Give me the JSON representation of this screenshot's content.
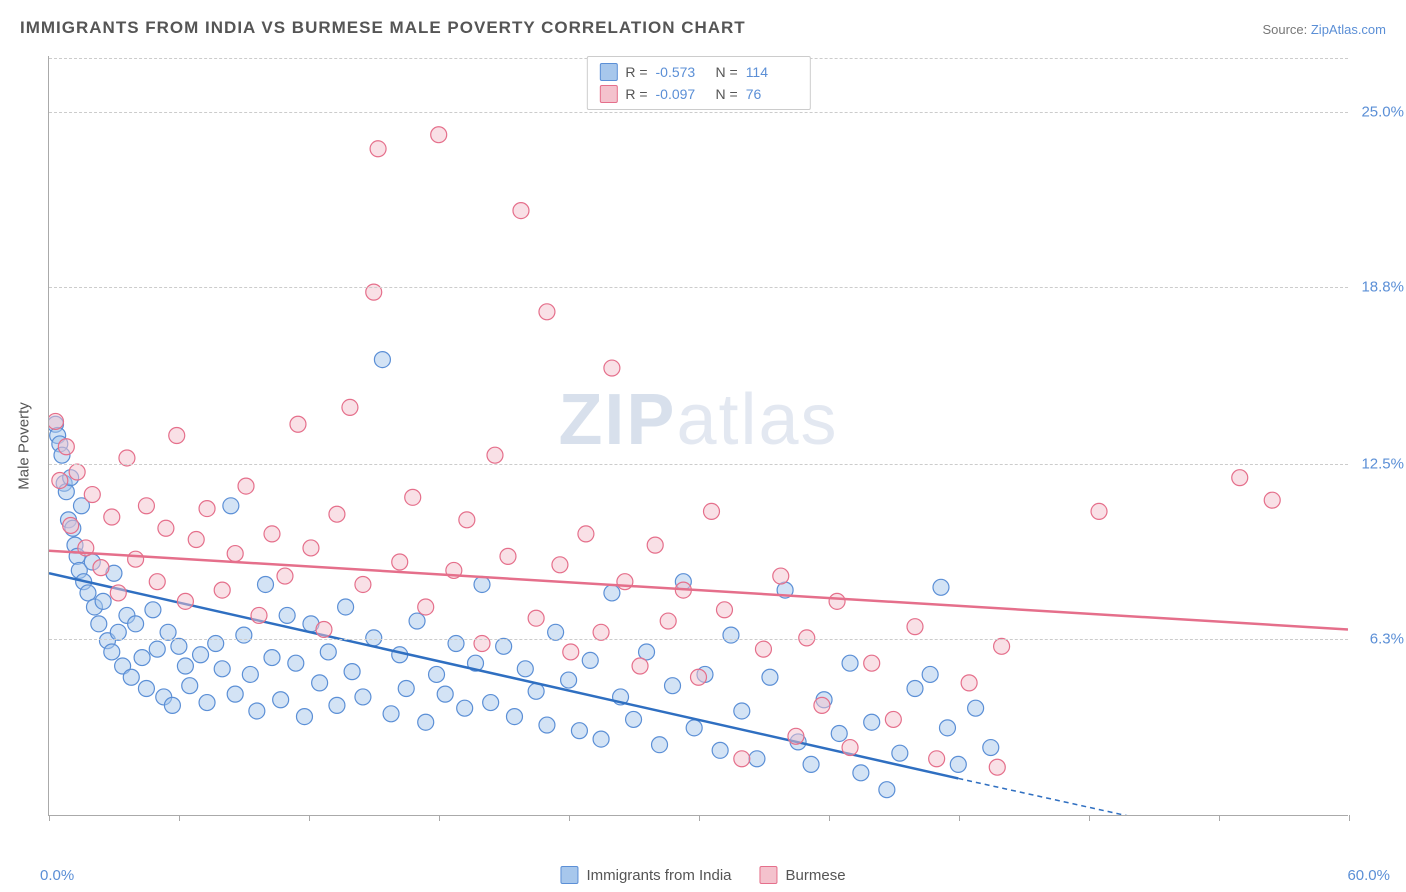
{
  "title": "IMMIGRANTS FROM INDIA VS BURMESE MALE POVERTY CORRELATION CHART",
  "source_prefix": "Source: ",
  "source_link": "ZipAtlas.com",
  "ylabel": "Male Poverty",
  "watermark_bold": "ZIP",
  "watermark_light": "atlas",
  "chart": {
    "type": "scatter",
    "xlim": [
      0,
      60
    ],
    "ylim": [
      0,
      27
    ],
    "x_tick_positions": [
      0,
      6,
      12,
      18,
      24,
      30,
      36,
      42,
      48,
      54,
      60
    ],
    "y_ticks": [
      {
        "value": 6.3,
        "label": "6.3%"
      },
      {
        "value": 12.5,
        "label": "12.5%"
      },
      {
        "value": 18.8,
        "label": "18.8%"
      },
      {
        "value": 25.0,
        "label": "25.0%"
      }
    ],
    "xlabel_min": "0.0%",
    "xlabel_max": "60.0%",
    "background_color": "#ffffff",
    "grid_color": "#cccccc",
    "point_radius": 8,
    "point_opacity": 0.5,
    "line_width": 2.5,
    "dash_pattern": "5,4",
    "series": [
      {
        "name": "Immigrants from India",
        "fill_color": "#a7c7ec",
        "stroke_color": "#5b8fd6",
        "line_color": "#2f6fc1",
        "R": "-0.573",
        "N": "114",
        "trend": {
          "x1": 0,
          "y1": 8.6,
          "x2": 42,
          "y2": 1.3,
          "dash_from_x": 42,
          "dash_to_x": 52,
          "dash_to_y": -0.4
        },
        "points": [
          [
            0.3,
            13.9
          ],
          [
            0.4,
            13.5
          ],
          [
            0.5,
            13.2
          ],
          [
            0.6,
            12.8
          ],
          [
            0.7,
            11.8
          ],
          [
            0.8,
            11.5
          ],
          [
            0.9,
            10.5
          ],
          [
            1.0,
            12.0
          ],
          [
            1.1,
            10.2
          ],
          [
            1.2,
            9.6
          ],
          [
            1.3,
            9.2
          ],
          [
            1.4,
            8.7
          ],
          [
            1.5,
            11.0
          ],
          [
            1.6,
            8.3
          ],
          [
            1.8,
            7.9
          ],
          [
            2.0,
            9.0
          ],
          [
            2.1,
            7.4
          ],
          [
            2.3,
            6.8
          ],
          [
            2.5,
            7.6
          ],
          [
            2.7,
            6.2
          ],
          [
            2.9,
            5.8
          ],
          [
            3.0,
            8.6
          ],
          [
            3.2,
            6.5
          ],
          [
            3.4,
            5.3
          ],
          [
            3.6,
            7.1
          ],
          [
            3.8,
            4.9
          ],
          [
            4.0,
            6.8
          ],
          [
            4.3,
            5.6
          ],
          [
            4.5,
            4.5
          ],
          [
            4.8,
            7.3
          ],
          [
            5.0,
            5.9
          ],
          [
            5.3,
            4.2
          ],
          [
            5.5,
            6.5
          ],
          [
            5.7,
            3.9
          ],
          [
            6.0,
            6.0
          ],
          [
            6.3,
            5.3
          ],
          [
            6.5,
            4.6
          ],
          [
            7.0,
            5.7
          ],
          [
            7.3,
            4.0
          ],
          [
            7.7,
            6.1
          ],
          [
            8.0,
            5.2
          ],
          [
            8.4,
            11.0
          ],
          [
            8.6,
            4.3
          ],
          [
            9.0,
            6.4
          ],
          [
            9.3,
            5.0
          ],
          [
            9.6,
            3.7
          ],
          [
            10.0,
            8.2
          ],
          [
            10.3,
            5.6
          ],
          [
            10.7,
            4.1
          ],
          [
            11.0,
            7.1
          ],
          [
            11.4,
            5.4
          ],
          [
            11.8,
            3.5
          ],
          [
            12.1,
            6.8
          ],
          [
            12.5,
            4.7
          ],
          [
            12.9,
            5.8
          ],
          [
            13.3,
            3.9
          ],
          [
            13.7,
            7.4
          ],
          [
            14.0,
            5.1
          ],
          [
            14.5,
            4.2
          ],
          [
            15.0,
            6.3
          ],
          [
            15.4,
            16.2
          ],
          [
            15.8,
            3.6
          ],
          [
            16.2,
            5.7
          ],
          [
            16.5,
            4.5
          ],
          [
            17.0,
            6.9
          ],
          [
            17.4,
            3.3
          ],
          [
            17.9,
            5.0
          ],
          [
            18.3,
            4.3
          ],
          [
            18.8,
            6.1
          ],
          [
            19.2,
            3.8
          ],
          [
            19.7,
            5.4
          ],
          [
            20.0,
            8.2
          ],
          [
            20.4,
            4.0
          ],
          [
            21.0,
            6.0
          ],
          [
            21.5,
            3.5
          ],
          [
            22.0,
            5.2
          ],
          [
            22.5,
            4.4
          ],
          [
            23.0,
            3.2
          ],
          [
            23.4,
            6.5
          ],
          [
            24.0,
            4.8
          ],
          [
            24.5,
            3.0
          ],
          [
            25.0,
            5.5
          ],
          [
            25.5,
            2.7
          ],
          [
            26.0,
            7.9
          ],
          [
            26.4,
            4.2
          ],
          [
            27.0,
            3.4
          ],
          [
            27.6,
            5.8
          ],
          [
            28.2,
            2.5
          ],
          [
            28.8,
            4.6
          ],
          [
            29.3,
            8.3
          ],
          [
            29.8,
            3.1
          ],
          [
            30.3,
            5.0
          ],
          [
            31.0,
            2.3
          ],
          [
            31.5,
            6.4
          ],
          [
            32.0,
            3.7
          ],
          [
            32.7,
            2.0
          ],
          [
            33.3,
            4.9
          ],
          [
            34.0,
            8.0
          ],
          [
            34.6,
            2.6
          ],
          [
            35.2,
            1.8
          ],
          [
            35.8,
            4.1
          ],
          [
            36.5,
            2.9
          ],
          [
            37.0,
            5.4
          ],
          [
            37.5,
            1.5
          ],
          [
            38.0,
            3.3
          ],
          [
            38.7,
            0.9
          ],
          [
            39.3,
            2.2
          ],
          [
            40.0,
            4.5
          ],
          [
            40.7,
            5.0
          ],
          [
            41.5,
            3.1
          ],
          [
            42.0,
            1.8
          ],
          [
            42.8,
            3.8
          ],
          [
            43.5,
            2.4
          ],
          [
            41.2,
            8.1
          ]
        ]
      },
      {
        "name": "Burmese",
        "fill_color": "#f4c2cd",
        "stroke_color": "#e56f8b",
        "line_color": "#e56f8b",
        "R": "-0.097",
        "N": "76",
        "trend": {
          "x1": 0,
          "y1": 9.4,
          "x2": 60,
          "y2": 6.6
        },
        "points": [
          [
            0.3,
            14.0
          ],
          [
            0.5,
            11.9
          ],
          [
            0.8,
            13.1
          ],
          [
            1.0,
            10.3
          ],
          [
            1.3,
            12.2
          ],
          [
            1.7,
            9.5
          ],
          [
            2.0,
            11.4
          ],
          [
            2.4,
            8.8
          ],
          [
            2.9,
            10.6
          ],
          [
            3.2,
            7.9
          ],
          [
            3.6,
            12.7
          ],
          [
            4.0,
            9.1
          ],
          [
            4.5,
            11.0
          ],
          [
            5.0,
            8.3
          ],
          [
            5.4,
            10.2
          ],
          [
            5.9,
            13.5
          ],
          [
            6.3,
            7.6
          ],
          [
            6.8,
            9.8
          ],
          [
            7.3,
            10.9
          ],
          [
            8.0,
            8.0
          ],
          [
            8.6,
            9.3
          ],
          [
            9.1,
            11.7
          ],
          [
            9.7,
            7.1
          ],
          [
            10.3,
            10.0
          ],
          [
            10.9,
            8.5
          ],
          [
            11.5,
            13.9
          ],
          [
            12.1,
            9.5
          ],
          [
            12.7,
            6.6
          ],
          [
            13.3,
            10.7
          ],
          [
            13.9,
            14.5
          ],
          [
            14.5,
            8.2
          ],
          [
            15.0,
            18.6
          ],
          [
            15.2,
            23.7
          ],
          [
            16.2,
            9.0
          ],
          [
            16.8,
            11.3
          ],
          [
            17.4,
            7.4
          ],
          [
            18.0,
            24.2
          ],
          [
            18.7,
            8.7
          ],
          [
            19.3,
            10.5
          ],
          [
            20.0,
            6.1
          ],
          [
            20.6,
            12.8
          ],
          [
            21.2,
            9.2
          ],
          [
            21.8,
            21.5
          ],
          [
            22.5,
            7.0
          ],
          [
            23.0,
            17.9
          ],
          [
            23.6,
            8.9
          ],
          [
            24.1,
            5.8
          ],
          [
            24.8,
            10.0
          ],
          [
            25.5,
            6.5
          ],
          [
            26.0,
            15.9
          ],
          [
            26.6,
            8.3
          ],
          [
            27.3,
            5.3
          ],
          [
            28.0,
            9.6
          ],
          [
            28.6,
            6.9
          ],
          [
            29.3,
            8.0
          ],
          [
            30.0,
            4.9
          ],
          [
            30.6,
            10.8
          ],
          [
            31.2,
            7.3
          ],
          [
            32.0,
            2.0
          ],
          [
            33.0,
            5.9
          ],
          [
            33.8,
            8.5
          ],
          [
            34.5,
            2.8
          ],
          [
            35.0,
            6.3
          ],
          [
            35.7,
            3.9
          ],
          [
            36.4,
            7.6
          ],
          [
            37.0,
            2.4
          ],
          [
            38.0,
            5.4
          ],
          [
            39.0,
            3.4
          ],
          [
            40.0,
            6.7
          ],
          [
            41.0,
            2.0
          ],
          [
            42.5,
            4.7
          ],
          [
            43.8,
            1.7
          ],
          [
            44.0,
            6.0
          ],
          [
            48.5,
            10.8
          ],
          [
            55.0,
            12.0
          ],
          [
            56.5,
            11.2
          ]
        ]
      }
    ]
  },
  "bottom_legend": [
    {
      "label": "Immigrants from India",
      "fill": "#a7c7ec",
      "stroke": "#5b8fd6"
    },
    {
      "label": "Burmese",
      "fill": "#f4c2cd",
      "stroke": "#e56f8b"
    }
  ]
}
